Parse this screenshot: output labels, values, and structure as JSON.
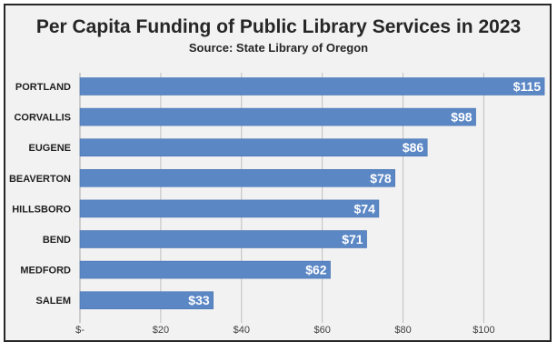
{
  "chart_data": {
    "type": "bar",
    "orientation": "horizontal",
    "title": "Per Capita Funding of Public Library Services in 2023",
    "subtitle": "Source: State Library of Oregon",
    "categories": [
      "PORTLAND",
      "CORVALLIS",
      "EUGENE",
      "BEAVERTON",
      "HILLSBORO",
      "BEND",
      "MEDFORD",
      "SALEM"
    ],
    "values": [
      115,
      98,
      86,
      78,
      74,
      71,
      62,
      33
    ],
    "data_labels": [
      "$115",
      "$98",
      "$86",
      "$78",
      "$74",
      "$71",
      "$62",
      "$33"
    ],
    "x_ticks": [
      0,
      20,
      40,
      60,
      80,
      100
    ],
    "x_tick_labels": [
      "$-",
      "$20",
      "$40",
      "$60",
      "$80",
      "$100"
    ],
    "xlim": [
      0,
      117
    ],
    "grid": true,
    "colors": {
      "bar": "#5b87c5",
      "bar_edge": "#4a74b2",
      "grid": "#bfbfbf",
      "background": "#f2f2f2"
    }
  }
}
